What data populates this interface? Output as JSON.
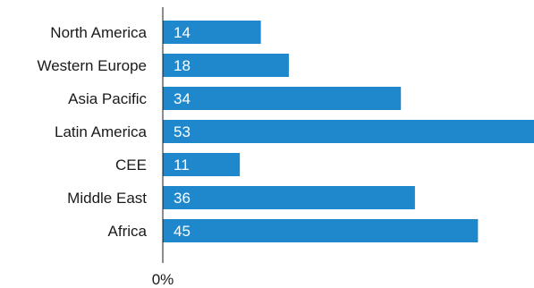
{
  "chart_data": {
    "type": "bar",
    "orientation": "horizontal",
    "categories": [
      "North America",
      "Western Europe",
      "Asia Pacific",
      "Latin America",
      "CEE",
      "Middle East",
      "Africa"
    ],
    "values": [
      14,
      18,
      34,
      53,
      11,
      36,
      45
    ],
    "value_labels": [
      "14",
      "18",
      "34",
      "53",
      "11",
      "36",
      "45"
    ],
    "x_tick_labels": [
      "0%"
    ],
    "xlim": [
      0,
      53
    ],
    "bar_color": "#1f88cc",
    "grid": false,
    "legend": "none"
  }
}
